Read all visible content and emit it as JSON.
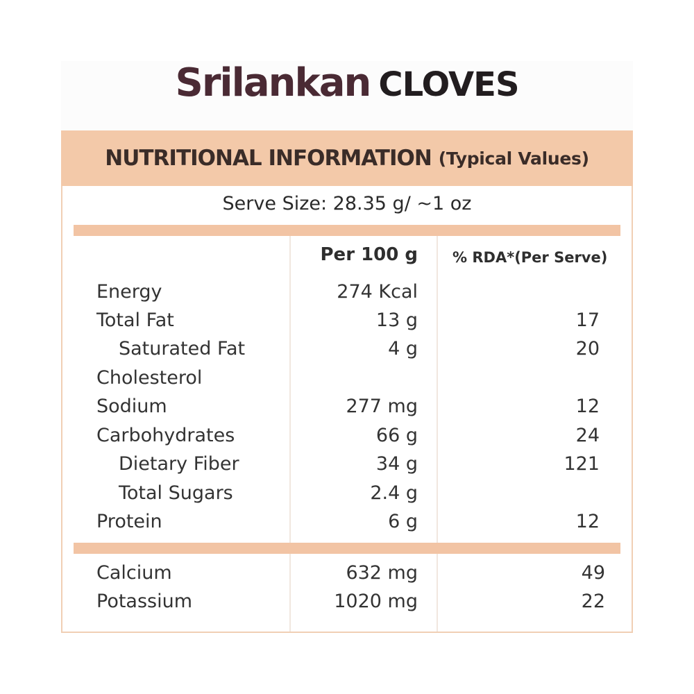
{
  "title": {
    "brand": "Srilankan",
    "product": "CLOVES"
  },
  "header": {
    "main": "NUTRITIONAL INFORMATION",
    "qualifier": "(Typical Values)"
  },
  "serve_size": "Serve Size: 28.35 g/ ~1 oz",
  "columns": {
    "per100": "Per 100 g",
    "rda": "% RDA*(Per Serve)"
  },
  "nutrients": [
    {
      "name": "Energy",
      "per100": "274 Kcal",
      "rda": ""
    },
    {
      "name": "Total Fat",
      "per100": "13 g",
      "rda": "17"
    },
    {
      "name": "Saturated Fat",
      "per100": "4 g",
      "rda": "20"
    },
    {
      "name": "Cholesterol",
      "per100": "",
      "rda": ""
    },
    {
      "name": "Sodium",
      "per100": "277 mg",
      "rda": "12"
    },
    {
      "name": "Carbohydrates",
      "per100": "66 g",
      "rda": "24"
    },
    {
      "name": "Dietary Fiber",
      "per100": "34 g",
      "rda": "121"
    },
    {
      "name": "Total Sugars",
      "per100": "2.4 g",
      "rda": ""
    },
    {
      "name": "Protein",
      "per100": "6 g",
      "rda": "12"
    }
  ],
  "minerals": [
    {
      "name": "Calcium",
      "per100": "632 mg",
      "rda": "49"
    },
    {
      "name": "Potassium",
      "per100": "1020 mg",
      "rda": "22"
    }
  ],
  "colors": {
    "accent": "#f3c9a9",
    "brand": "#4a2a34",
    "border": "#f0cfb4"
  }
}
